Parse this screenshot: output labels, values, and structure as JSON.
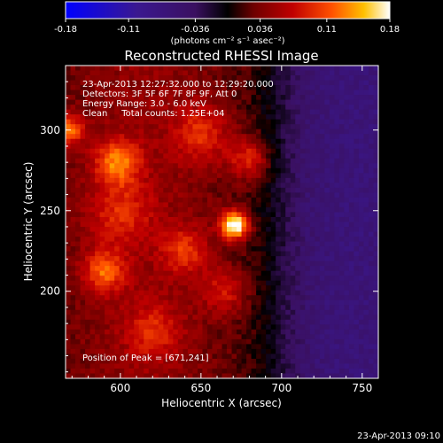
{
  "chart_data": {
    "type": "heatmap",
    "title": "Reconstructed RHESSI Image",
    "xlabel": "Heliocentric X (arcsec)",
    "ylabel": "Heliocentric Y (arcsec)",
    "xlim": [
      566,
      760
    ],
    "ylim": [
      146,
      340
    ],
    "x_ticks": [
      600,
      650,
      700,
      750
    ],
    "y_ticks": [
      200,
      250,
      300
    ],
    "colorbar": {
      "ticks": [
        "-0.18",
        "-0.11",
        "-0.036",
        "0.036",
        "0.11",
        "0.18"
      ],
      "range": [
        -0.18,
        0.18
      ],
      "unit_label": "(photons cm⁻² s⁻¹ asec⁻²)"
    },
    "annotations": [
      "23-Apr-2013 12:27:32.000 to 12:29:20.000",
      "Detectors: 3F 5F 6F 7F 8F 9F, Att 0",
      "Energy Range: 3.0 - 6.0 keV",
      "Clean     Total counts: 1.25E+04"
    ],
    "peak_label": "Position of Peak = [671,241]",
    "peak": {
      "x": 671,
      "y": 241,
      "value": 0.18
    },
    "sources": [
      {
        "x": 671,
        "y": 241,
        "sigma": 6,
        "value": 0.17
      },
      {
        "x": 598,
        "y": 280,
        "sigma": 10,
        "value": 0.09
      },
      {
        "x": 568,
        "y": 300,
        "sigma": 6,
        "value": 0.1
      },
      {
        "x": 590,
        "y": 212,
        "sigma": 9,
        "value": 0.08
      },
      {
        "x": 650,
        "y": 298,
        "sigma": 12,
        "value": 0.06
      },
      {
        "x": 680,
        "y": 282,
        "sigma": 9,
        "value": 0.07
      },
      {
        "x": 640,
        "y": 225,
        "sigma": 10,
        "value": 0.06
      },
      {
        "x": 665,
        "y": 200,
        "sigma": 10,
        "value": 0.05
      },
      {
        "x": 620,
        "y": 175,
        "sigma": 12,
        "value": 0.05
      },
      {
        "x": 600,
        "y": 248,
        "sigma": 14,
        "value": 0.05
      }
    ]
  },
  "footer_timestamp": "23-Apr-2013 09:10"
}
